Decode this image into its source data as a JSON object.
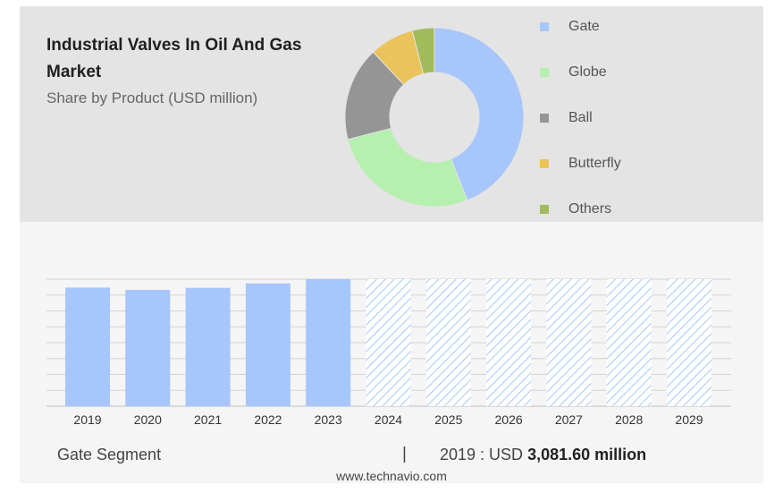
{
  "header": {
    "title": "Industrial Valves In Oil And Gas Market",
    "subtitle": "Share by Product (USD million)"
  },
  "colors": {
    "gate": "#a7c6fb",
    "globe": "#b5f0ae",
    "ball": "#959595",
    "butterfly": "#eac45a",
    "others": "#a2bb5b",
    "hatch": "#a7c6fb"
  },
  "chart_data": [
    {
      "type": "pie",
      "categories": [
        "Gate",
        "Globe",
        "Ball",
        "Butterfly",
        "Others"
      ],
      "values": [
        44,
        27,
        17,
        8,
        4
      ],
      "legend": "right"
    },
    {
      "type": "bar",
      "categories": [
        "2019",
        "2020",
        "2021",
        "2022",
        "2023",
        "2024",
        "2025",
        "2026",
        "2027",
        "2028",
        "2029"
      ],
      "values": [
        3081.6,
        3020,
        3075,
        3190,
        3300,
        null,
        null,
        null,
        null,
        null,
        null
      ],
      "forecast_categories": [
        "2024",
        "2025",
        "2026",
        "2027",
        "2028",
        "2029"
      ],
      "ylim": [
        0,
        3300
      ],
      "grid": true
    }
  ],
  "footer": {
    "segment": "Gate Segment",
    "separator": "|",
    "year_value": "2019 : USD",
    "amount": "3,081.60 million",
    "website": "www.technavio.com"
  }
}
